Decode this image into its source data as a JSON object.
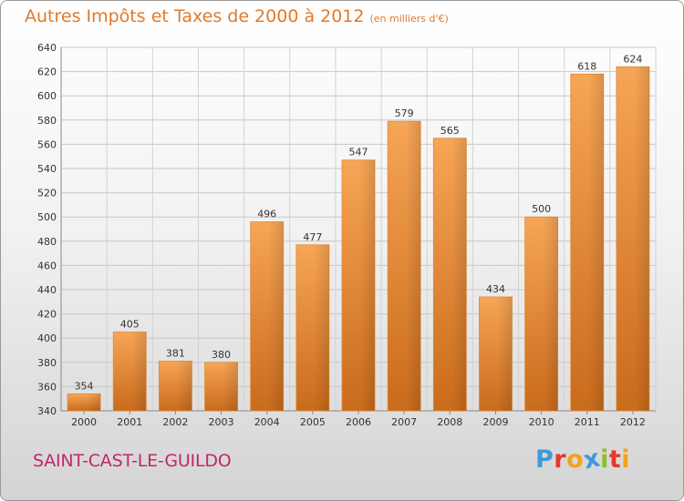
{
  "chart_data": {
    "type": "bar",
    "title": "Autres Impôts et Taxes de 2000 à 2012",
    "subtitle": "(en milliers d'€)",
    "categories": [
      "2000",
      "2001",
      "2002",
      "2003",
      "2004",
      "2005",
      "2006",
      "2007",
      "2008",
      "2009",
      "2010",
      "2011",
      "2012"
    ],
    "values": [
      354,
      405,
      381,
      380,
      496,
      477,
      547,
      579,
      565,
      434,
      500,
      618,
      624
    ],
    "ylim": [
      340,
      640
    ],
    "yticks": [
      340,
      360,
      380,
      400,
      420,
      440,
      460,
      480,
      500,
      520,
      540,
      560,
      580,
      600,
      620,
      640
    ],
    "grid": true,
    "legend": "none",
    "bar_color": "#f39a3c"
  },
  "footer": {
    "commune": "SAINT-CAST-LE-GUILDO",
    "logo": [
      "P",
      "r",
      "o",
      "x",
      "i",
      "t",
      "i"
    ],
    "logo_colors": [
      "#3f9ad6",
      "#e4392b",
      "#f4a21a",
      "#3f9ad6",
      "#8cbf26",
      "#e4392b",
      "#f4a21a"
    ]
  }
}
